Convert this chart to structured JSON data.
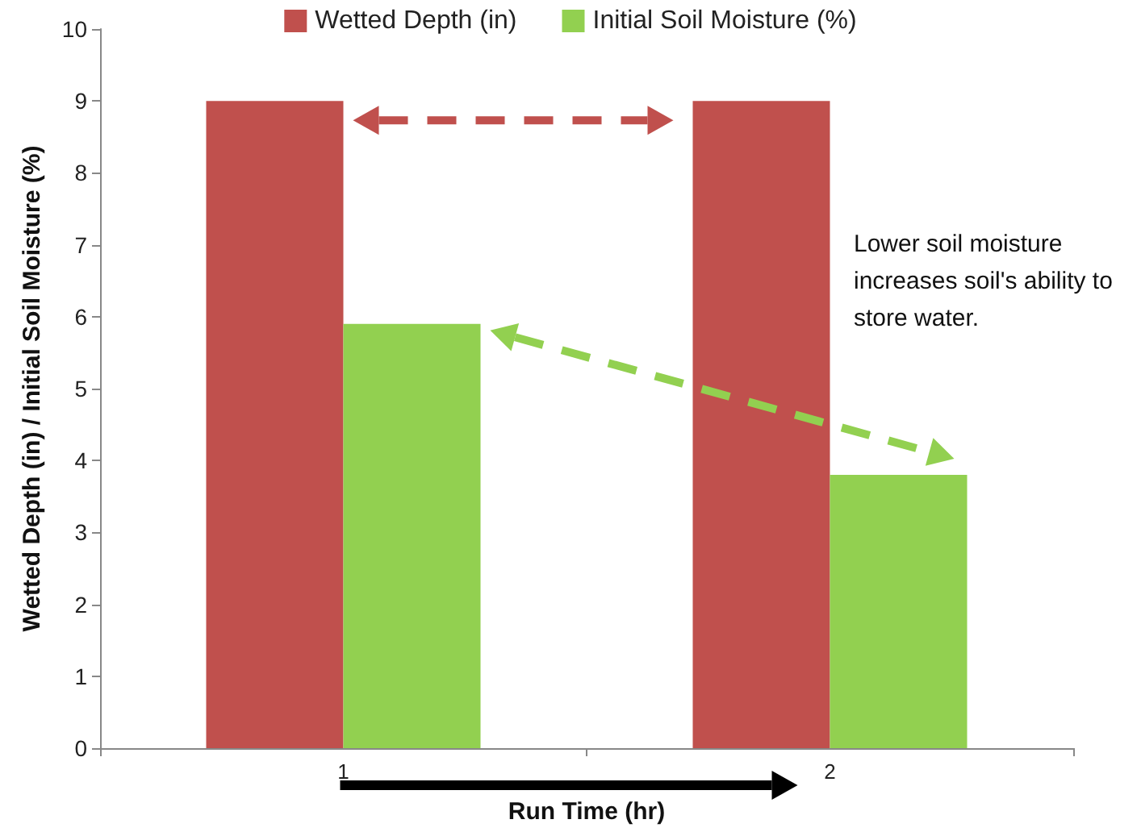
{
  "chart_data": {
    "type": "bar",
    "categories": [
      "1",
      "2"
    ],
    "series": [
      {
        "name": "Wetted Depth (in)",
        "color": "#c0504d",
        "values": [
          9,
          9
        ]
      },
      {
        "name": "Initial Soil Moisture (%)",
        "color": "#92d050",
        "values": [
          5.9,
          3.8
        ]
      }
    ],
    "xlabel": "Run Time (hr)",
    "ylabel": "Wetted Depth (in) / Initial Soil Moisture (%)",
    "ylim": [
      0,
      10
    ],
    "yticks": [
      0,
      1,
      2,
      3,
      4,
      5,
      6,
      7,
      8,
      9,
      10
    ],
    "grid": false,
    "legend": "top",
    "annotations": [
      "Lower soil moisture increases soil's ability to store water."
    ]
  }
}
